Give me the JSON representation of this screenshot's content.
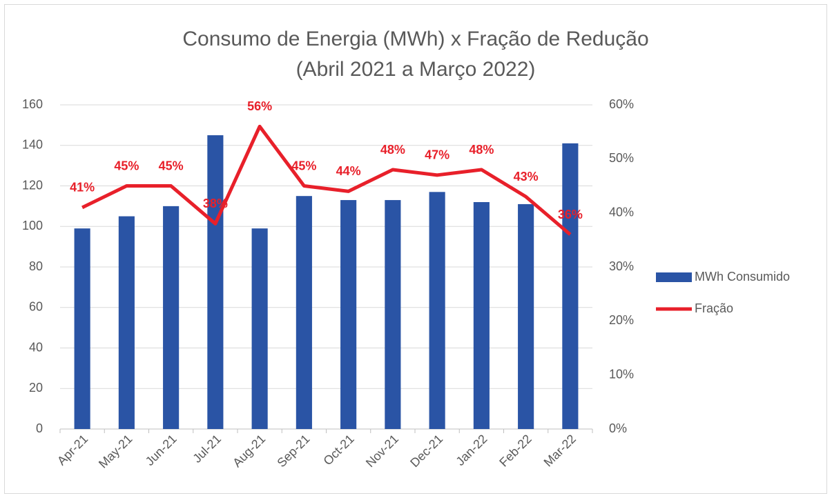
{
  "chart_data": {
    "type": "combo",
    "title": "Consumo de Energia (MWh) x Fração de Redução",
    "subtitle": "(Abril 2021 a Março 2022)",
    "categories": [
      "Apr-21",
      "May-21",
      "Jun-21",
      "Jul-21",
      "Aug-21",
      "Sep-21",
      "Oct-21",
      "Nov-21",
      "Dec-21",
      "Jan-22",
      "Feb-22",
      "Mar-22"
    ],
    "series": [
      {
        "name": "MWh Consumido",
        "type": "bar",
        "color": "#2a54a5",
        "values": [
          99,
          105,
          110,
          145,
          99,
          115,
          113,
          113,
          117,
          112,
          111,
          141
        ]
      },
      {
        "name": "Fração",
        "type": "line",
        "axis": "y2",
        "color": "#e8202a",
        "values": [
          41,
          45,
          45,
          38,
          56,
          45,
          44,
          48,
          47,
          48,
          43,
          36
        ],
        "value_labels": [
          "41%",
          "45%",
          "45%",
          "38%",
          "56%",
          "45%",
          "44%",
          "48%",
          "47%",
          "48%",
          "43%",
          "36%"
        ]
      }
    ],
    "ylim": [
      0,
      160
    ],
    "yticks": [
      0,
      20,
      40,
      60,
      80,
      100,
      120,
      140,
      160
    ],
    "y2lim": [
      0,
      60
    ],
    "y2ticks": [
      {
        "value": 0,
        "label": "0%"
      },
      {
        "value": 10,
        "label": "10%"
      },
      {
        "value": 20,
        "label": "20%"
      },
      {
        "value": 30,
        "label": "30%"
      },
      {
        "value": 40,
        "label": "40%"
      },
      {
        "value": 50,
        "label": "50%"
      },
      {
        "value": 60,
        "label": "60%"
      }
    ],
    "grid": true,
    "legend": "right"
  }
}
